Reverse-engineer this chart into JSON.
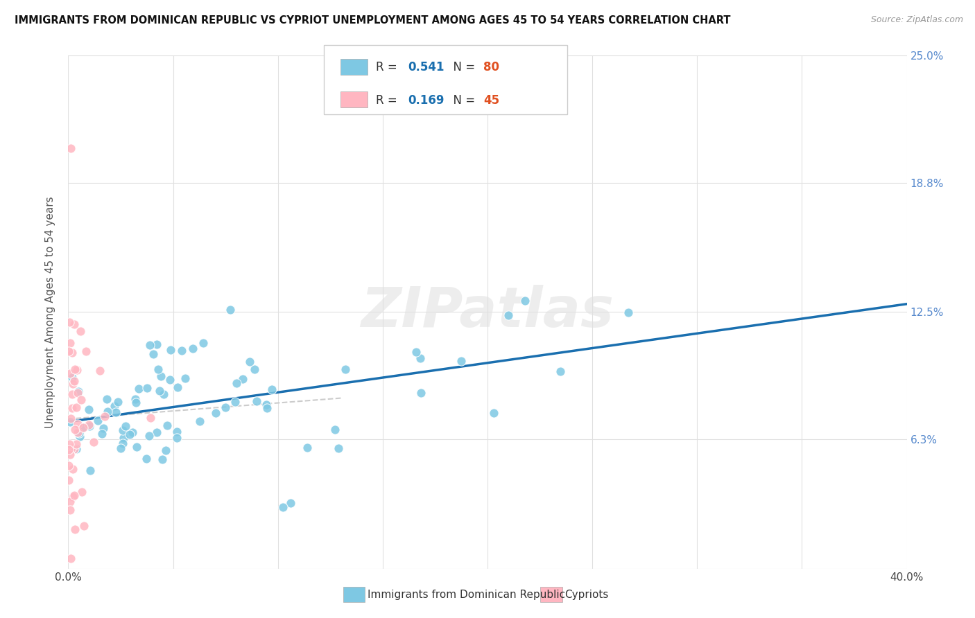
{
  "title": "IMMIGRANTS FROM DOMINICAN REPUBLIC VS CYPRIOT UNEMPLOYMENT AMONG AGES 45 TO 54 YEARS CORRELATION CHART",
  "source": "Source: ZipAtlas.com",
  "ylabel": "Unemployment Among Ages 45 to 54 years",
  "xlim": [
    0.0,
    0.4
  ],
  "ylim": [
    0.0,
    0.25
  ],
  "xtick_pos": [
    0.0,
    0.05,
    0.1,
    0.15,
    0.2,
    0.25,
    0.3,
    0.35,
    0.4
  ],
  "xticklabels": [
    "0.0%",
    "",
    "",
    "",
    "",
    "",
    "",
    "",
    "40.0%"
  ],
  "ytick_positions": [
    0.0,
    0.063,
    0.125,
    0.188,
    0.25
  ],
  "ytick_labels": [
    "",
    "6.3%",
    "12.5%",
    "18.8%",
    "25.0%"
  ],
  "blue_R": 0.541,
  "blue_N": 80,
  "pink_R": 0.169,
  "pink_N": 45,
  "blue_color": "#7ec8e3",
  "pink_color": "#ffb6c1",
  "line_blue_color": "#1a6faf",
  "line_pink_color": "#e8a0a0",
  "grid_color": "#e0e0e0",
  "watermark": "ZIPatlas",
  "legend_label_blue": "Immigrants from Dominican Republic",
  "legend_label_pink": "Cypriots",
  "blue_R_color": "#1a6faf",
  "blue_N_color": "#e05020",
  "pink_R_color": "#1a6faf",
  "pink_N_color": "#e05020"
}
